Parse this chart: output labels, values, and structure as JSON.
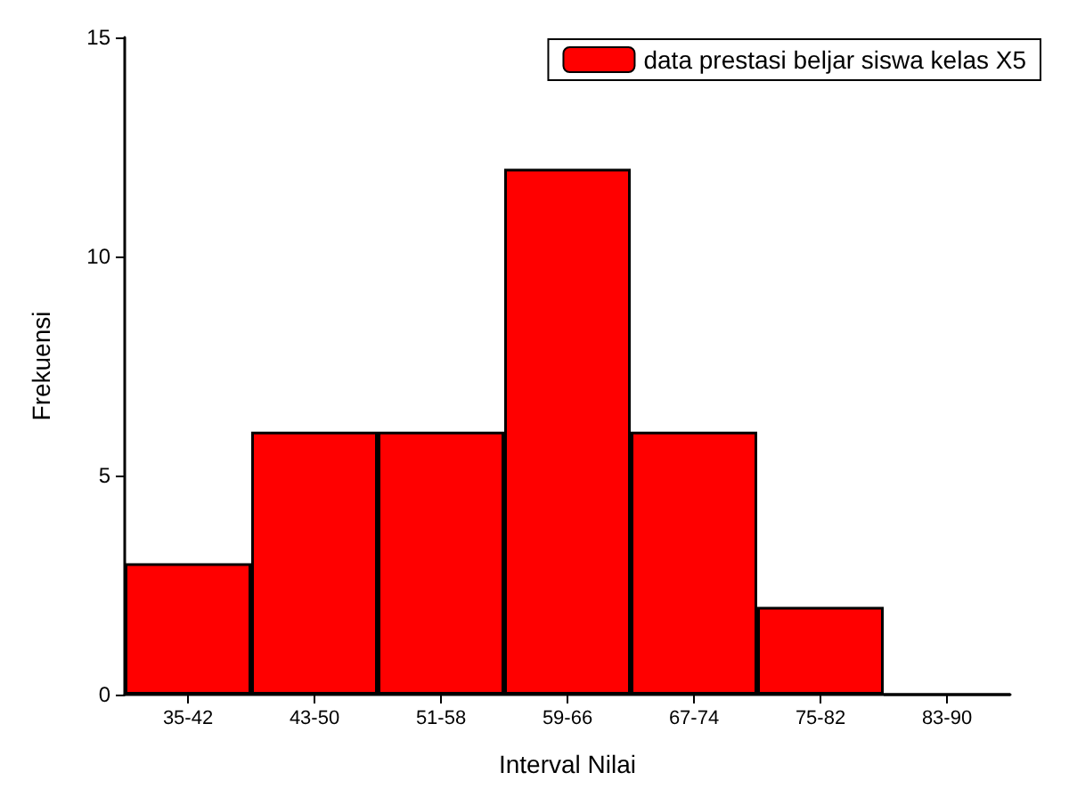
{
  "chart_data": {
    "type": "bar",
    "xlabel": "Interval Nilai",
    "ylabel": "Frekuensi",
    "categories": [
      "35-42",
      "43-50",
      "51-58",
      "59-66",
      "67-74",
      "75-82",
      "83-90"
    ],
    "series": [
      {
        "name": "data prestasi beljar siswa kelas X5",
        "color": "#ff0000",
        "values": [
          3,
          6,
          6,
          12,
          6,
          2,
          0
        ]
      }
    ],
    "ylim": [
      0,
      15
    ],
    "yticks": [
      0,
      5,
      10,
      15
    ],
    "grid": false,
    "legend": "top right"
  }
}
